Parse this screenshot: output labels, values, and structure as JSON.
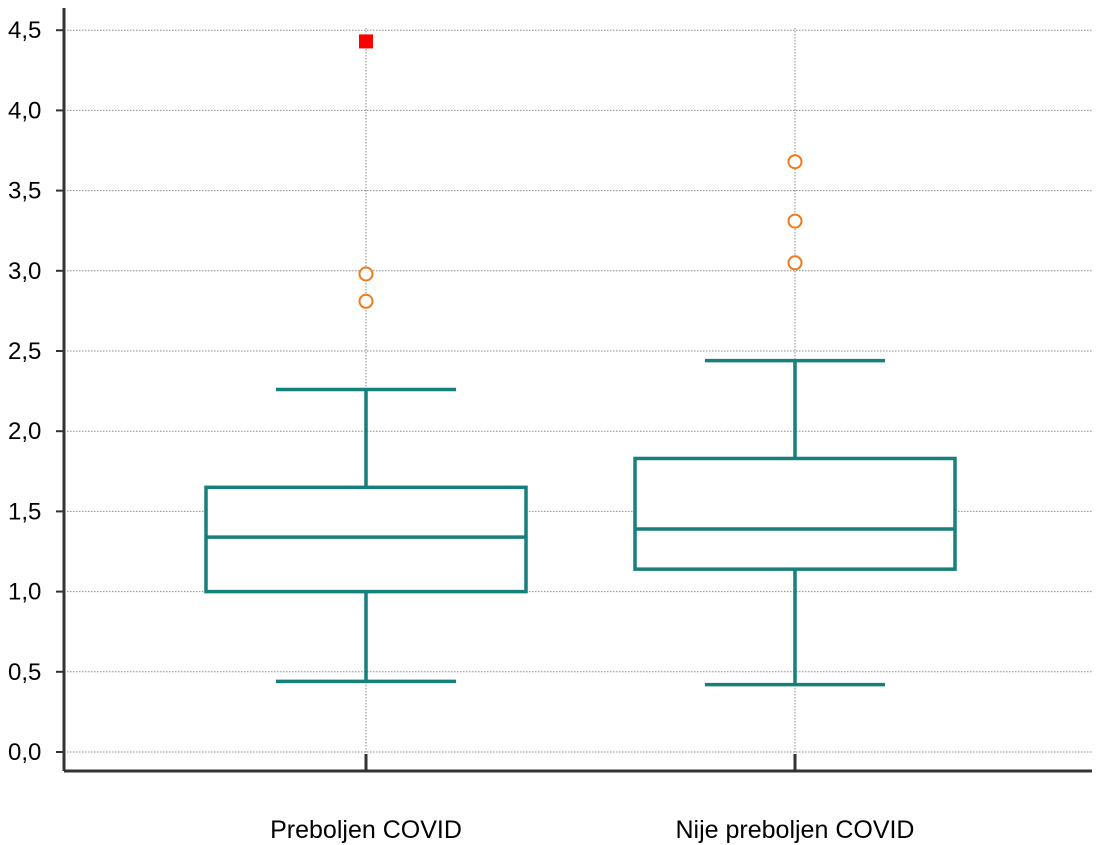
{
  "chart_data": {
    "type": "box",
    "title": "",
    "xlabel": "",
    "ylabel": "",
    "ylim": [
      -0.06,
      4.55
    ],
    "y_ticks": [
      0.0,
      0.5,
      1.0,
      1.5,
      2.0,
      2.5,
      3.0,
      3.5,
      4.0,
      4.5
    ],
    "y_tick_labels": [
      "0,0",
      "0,5",
      "1,0",
      "1,5",
      "2,0",
      "2,5",
      "3,0",
      "3,5",
      "4,0",
      "4,5"
    ],
    "grid": true,
    "categories": [
      "Preboljen COVID",
      "Nije preboljen COVID"
    ],
    "boxes": [
      {
        "category": "Preboljen COVID",
        "whisker_low": 0.44,
        "q1": 1.0,
        "median": 1.34,
        "q3": 1.65,
        "whisker_high": 2.26,
        "outliers": [
          2.81,
          2.98
        ],
        "far_outliers": [
          4.43
        ]
      },
      {
        "category": "Nije preboljen COVID",
        "whisker_low": 0.42,
        "q1": 1.14,
        "median": 1.39,
        "q3": 1.83,
        "whisker_high": 2.44,
        "outliers": [
          3.05,
          3.31,
          3.68
        ],
        "far_outliers": []
      }
    ],
    "colors": {
      "box": "#177f7c",
      "outlier": "#f07a1a",
      "far_outlier": "#ff0000",
      "grid": "#8a8a8a",
      "axis": "#333333"
    }
  }
}
